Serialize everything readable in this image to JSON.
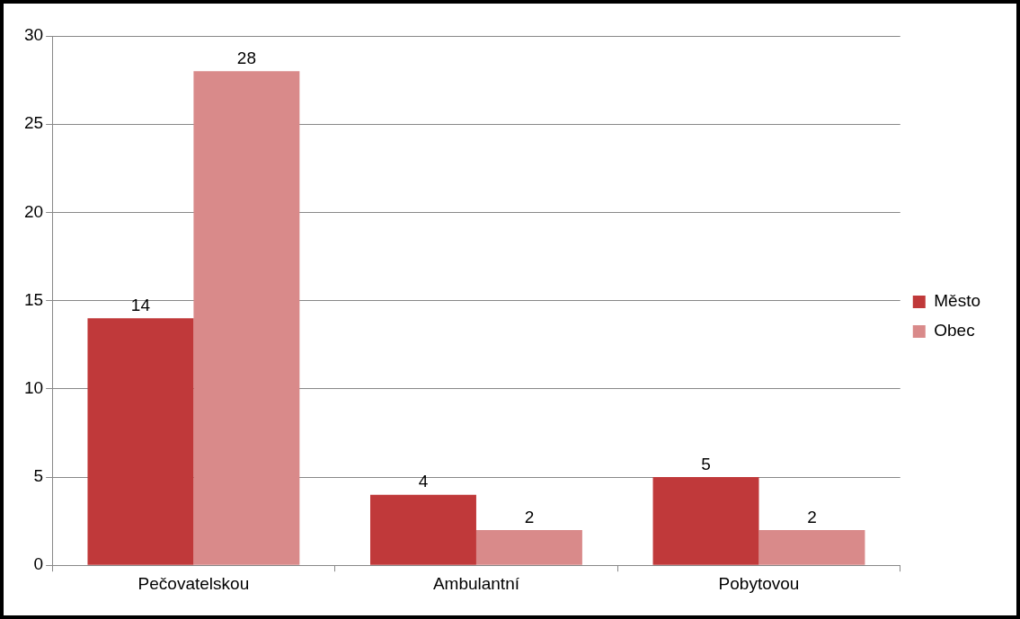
{
  "chart_data": {
    "type": "bar",
    "categories": [
      "Pečovatelskou",
      "Ambulantní",
      "Pobytovou"
    ],
    "series": [
      {
        "name": "Město",
        "color": "#c0393a",
        "values": [
          14,
          4,
          5
        ]
      },
      {
        "name": "Obec",
        "color": "#d98a8a",
        "values": [
          28,
          2,
          2
        ]
      }
    ],
    "ylim": [
      0,
      30
    ],
    "yticks": [
      0,
      5,
      10,
      15,
      20,
      25,
      30
    ],
    "grid": "y",
    "legend": "right",
    "data_labels": true
  }
}
